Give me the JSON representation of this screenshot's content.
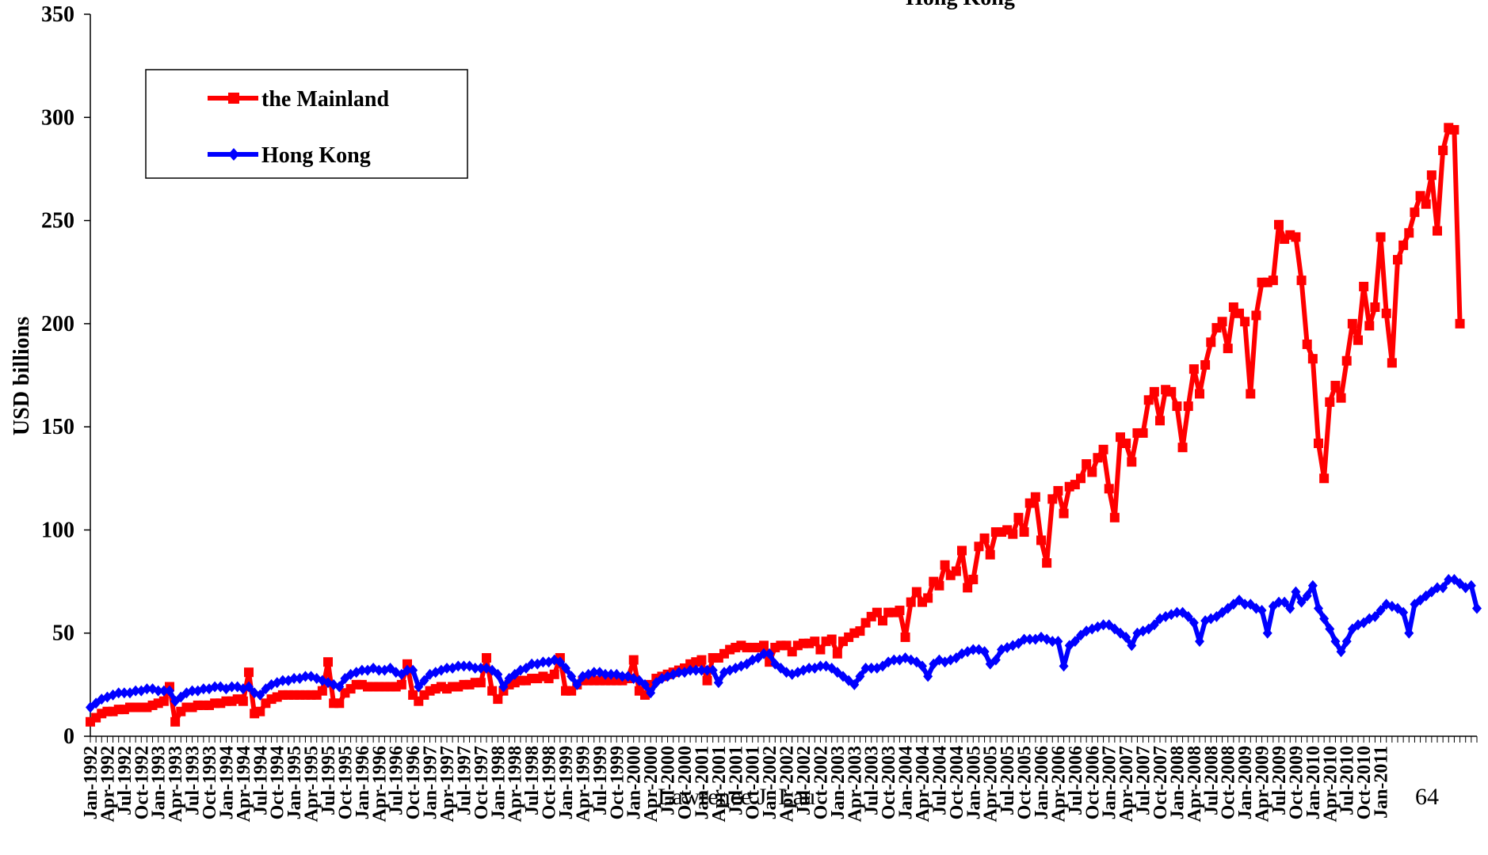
{
  "chart_data": {
    "type": "line",
    "title_fragment": "Hong Kong",
    "ylabel": "USD billions",
    "xlabel": "",
    "ylim": [
      0,
      350
    ],
    "yticks": [
      0,
      50,
      100,
      150,
      200,
      250,
      300,
      350
    ],
    "grid": false,
    "legend_position": "top-left",
    "x_start": "1992-01",
    "x_end": "2011-01",
    "x_tick_labels": [
      "Jan-1992",
      "Apr-1992",
      "Jul-1992",
      "Oct-1992",
      "Jan-1993",
      "Apr-1993",
      "Jul-1993",
      "Oct-1993",
      "Jan-1994",
      "Apr-1994",
      "Jul-1994",
      "Oct-1994",
      "Jan-1995",
      "Apr-1995",
      "Jul-1995",
      "Oct-1995",
      "Jan-1996",
      "Apr-1996",
      "Jul-1996",
      "Oct-1996",
      "Jan-1997",
      "Apr-1997",
      "Jul-1997",
      "Oct-1997",
      "Jan-1998",
      "Apr-1998",
      "Jul-1998",
      "Oct-1998",
      "Jan-1999",
      "Apr-1999",
      "Jul-1999",
      "Oct-1999",
      "Jan-2000",
      "Apr-2000",
      "Jul-2000",
      "Oct-2000",
      "Jan-2001",
      "Apr-2001",
      "Jul-2001",
      "Oct-2001",
      "Jan-2002",
      "Apr-2002",
      "Jul-2002",
      "Oct-2002",
      "Jan-2003",
      "Apr-2003",
      "Jul-2003",
      "Oct-2003",
      "Jan-2004",
      "Apr-2004",
      "Jul-2004",
      "Oct-2004",
      "Jan-2005",
      "Apr-2005",
      "Jul-2005",
      "Oct-2005",
      "Jan-2006",
      "Apr-2006",
      "Jul-2006",
      "Oct-2006",
      "Jan-2007",
      "Apr-2007",
      "Jul-2007",
      "Oct-2007",
      "Jan-2008",
      "Apr-2008",
      "Jul-2008",
      "Oct-2008",
      "Jan-2009",
      "Apr-2009",
      "Jul-2009",
      "Oct-2009",
      "Jan-2010",
      "Apr-2010",
      "Jul-2010",
      "Oct-2010",
      "Jan-2011"
    ],
    "series": [
      {
        "name": "the Mainland",
        "color": "#ff0000",
        "marker": "square",
        "values": [
          7,
          9,
          11,
          12,
          12,
          13,
          13,
          14,
          14,
          14,
          14,
          15,
          16,
          17,
          24,
          7,
          12,
          14,
          14,
          15,
          15,
          15,
          16,
          16,
          17,
          17,
          18,
          17,
          31,
          11,
          12,
          16,
          18,
          19,
          20,
          20,
          20,
          20,
          20,
          20,
          20,
          22,
          36,
          16,
          16,
          21,
          23,
          25,
          25,
          24,
          24,
          24,
          24,
          24,
          24,
          25,
          35,
          20,
          17,
          20,
          22,
          23,
          24,
          23,
          24,
          24,
          25,
          25,
          26,
          26,
          38,
          22,
          18,
          22,
          25,
          26,
          27,
          27,
          28,
          28,
          29,
          28,
          30,
          38,
          22,
          22,
          25,
          27,
          27,
          27,
          27,
          27,
          27,
          27,
          27,
          28,
          37,
          22,
          20,
          25,
          28,
          29,
          30,
          31,
          32,
          33,
          35,
          36,
          37,
          27,
          38,
          38,
          40,
          42,
          43,
          44,
          43,
          43,
          43,
          44,
          36,
          43,
          44,
          44,
          41,
          44,
          45,
          45,
          46,
          42,
          46,
          47,
          40,
          46,
          48,
          50,
          51,
          55,
          58,
          60,
          56,
          60,
          60,
          61,
          48,
          65,
          70,
          65,
          67,
          75,
          73,
          83,
          78,
          80,
          90,
          72,
          76,
          92,
          96,
          88,
          99,
          99,
          100,
          98,
          106,
          99,
          113,
          116,
          95,
          84,
          115,
          119,
          108,
          121,
          122,
          125,
          132,
          128,
          135,
          139,
          120,
          106,
          145,
          142,
          133,
          147,
          147,
          163,
          167,
          153,
          168,
          167,
          160,
          140,
          160,
          178,
          166,
          180,
          191,
          198,
          201,
          188,
          208,
          205,
          201,
          166,
          204,
          220,
          220,
          221,
          248,
          241,
          243,
          242,
          221,
          190,
          183,
          142,
          125,
          162,
          170,
          164,
          182,
          200,
          192,
          218,
          199,
          208,
          242,
          205,
          181,
          231,
          238,
          244,
          254,
          262,
          258,
          272,
          245,
          284,
          295,
          294,
          200
        ]
      },
      {
        "name": "Hong Kong",
        "color": "#0000ff",
        "marker": "diamond",
        "values": [
          14,
          16,
          18,
          19,
          20,
          21,
          21,
          21,
          22,
          22,
          23,
          23,
          22,
          22,
          22,
          17,
          19,
          21,
          22,
          22,
          23,
          23,
          24,
          24,
          23,
          24,
          24,
          23,
          24,
          21,
          20,
          23,
          25,
          26,
          27,
          27,
          28,
          28,
          29,
          29,
          28,
          27,
          26,
          25,
          24,
          28,
          30,
          31,
          32,
          32,
          33,
          32,
          32,
          33,
          31,
          30,
          32,
          32,
          24,
          27,
          30,
          31,
          32,
          33,
          33,
          34,
          34,
          34,
          33,
          33,
          33,
          32,
          30,
          24,
          28,
          30,
          32,
          33,
          35,
          35,
          36,
          36,
          37,
          36,
          33,
          29,
          25,
          29,
          30,
          31,
          31,
          30,
          30,
          30,
          29,
          29,
          28,
          27,
          25,
          21,
          26,
          28,
          29,
          30,
          31,
          31,
          32,
          32,
          32,
          32,
          32,
          26,
          31,
          32,
          33,
          34,
          35,
          37,
          38,
          40,
          40,
          35,
          33,
          31,
          30,
          31,
          32,
          33,
          33,
          34,
          34,
          33,
          31,
          29,
          27,
          25,
          29,
          33,
          33,
          33,
          34,
          36,
          37,
          37,
          38,
          37,
          36,
          34,
          29,
          35,
          37,
          36,
          37,
          38,
          40,
          41,
          42,
          42,
          41,
          35,
          37,
          42,
          43,
          44,
          45,
          47,
          47,
          47,
          48,
          47,
          46,
          46,
          34,
          44,
          46,
          49,
          51,
          52,
          53,
          54,
          54,
          52,
          50,
          48,
          44,
          50,
          51,
          52,
          54,
          57,
          58,
          59,
          60,
          60,
          58,
          55,
          46,
          56,
          57,
          58,
          60,
          62,
          64,
          66,
          64,
          64,
          62,
          61,
          50,
          63,
          65,
          65,
          62,
          70,
          65,
          68,
          73,
          62,
          57,
          52,
          46,
          41,
          46,
          52,
          54,
          55,
          57,
          58,
          61,
          64,
          63,
          62,
          60,
          50,
          64,
          66,
          68,
          70,
          72,
          72,
          76,
          76,
          74,
          72,
          73,
          62
        ]
      }
    ],
    "footer_left": "Lawrence J. Lau",
    "footer_right": "64"
  }
}
